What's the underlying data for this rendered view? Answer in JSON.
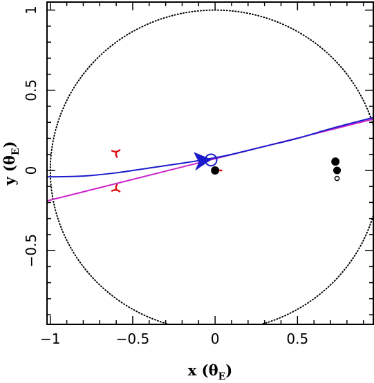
{
  "chart_data": {
    "type": "scatter",
    "xlabel": "x (θ",
    "xlabel_sub": "E",
    "xlabel_close": ")",
    "ylabel": "y (θ",
    "ylabel_sub": "E",
    "ylabel_close": ")",
    "xlim": [
      -1.02,
      0.96
    ],
    "ylim": [
      -0.96,
      1.05
    ],
    "x_ticks": [
      {
        "value": -1,
        "label": "−1"
      },
      {
        "value": -0.5,
        "label": "−0.5"
      },
      {
        "value": 0,
        "label": "0"
      },
      {
        "value": 0.5,
        "label": "0.5"
      }
    ],
    "y_ticks": [
      {
        "value": -0.5,
        "label": "−0.5"
      },
      {
        "value": 0,
        "label": "0"
      },
      {
        "value": 0.5,
        "label": "0.5"
      },
      {
        "value": 1,
        "label": "1"
      }
    ],
    "x_minor_step": 0.1,
    "y_minor_step": 0.1,
    "einstein_ring": {
      "center": [
        0,
        0
      ],
      "radius": 1,
      "style": "dotted",
      "color": "#000000"
    },
    "source_trajectory_curved": {
      "color": "#1a1acc",
      "points": [
        [
          -1.02,
          -0.04
        ],
        [
          -0.8,
          -0.035
        ],
        [
          -0.6,
          -0.015
        ],
        [
          -0.4,
          0.015
        ],
        [
          -0.2,
          0.045
        ],
        [
          -0.05,
          0.07
        ],
        [
          0.1,
          0.1
        ],
        [
          0.3,
          0.15
        ],
        [
          0.5,
          0.2
        ],
        [
          0.7,
          0.26
        ],
        [
          0.96,
          0.33
        ]
      ]
    },
    "source_trajectory_straight": {
      "color": "#cc22cc",
      "points": [
        [
          -1.02,
          -0.19
        ],
        [
          0.96,
          0.32
        ]
      ]
    },
    "source_circle": {
      "x": -0.025,
      "y": 0.065,
      "r": 0.035,
      "color": "#1a1acc"
    },
    "direction_arrow": {
      "x": -0.08,
      "y": 0.055,
      "color": "#1a1acc"
    },
    "lens_masses": [
      {
        "x": 0,
        "y": 0,
        "r": 0.022,
        "fill": "#000000"
      },
      {
        "x": 0.73,
        "y": 0.055,
        "r": 0.022,
        "fill": "#000000"
      },
      {
        "x": 0.74,
        "y": 0.0,
        "r": 0.02,
        "fill": "#000000"
      },
      {
        "x": 0.74,
        "y": -0.05,
        "r": 0.013,
        "fill": "#ffffff"
      }
    ],
    "caustics": {
      "color": "#dd1111",
      "items": [
        {
          "x": -0.6,
          "y": 0.105,
          "orientation": "up"
        },
        {
          "x": -0.6,
          "y": -0.11,
          "orientation": "down"
        },
        {
          "x": 0.01,
          "y": 0.0,
          "orientation": "right"
        }
      ]
    }
  }
}
